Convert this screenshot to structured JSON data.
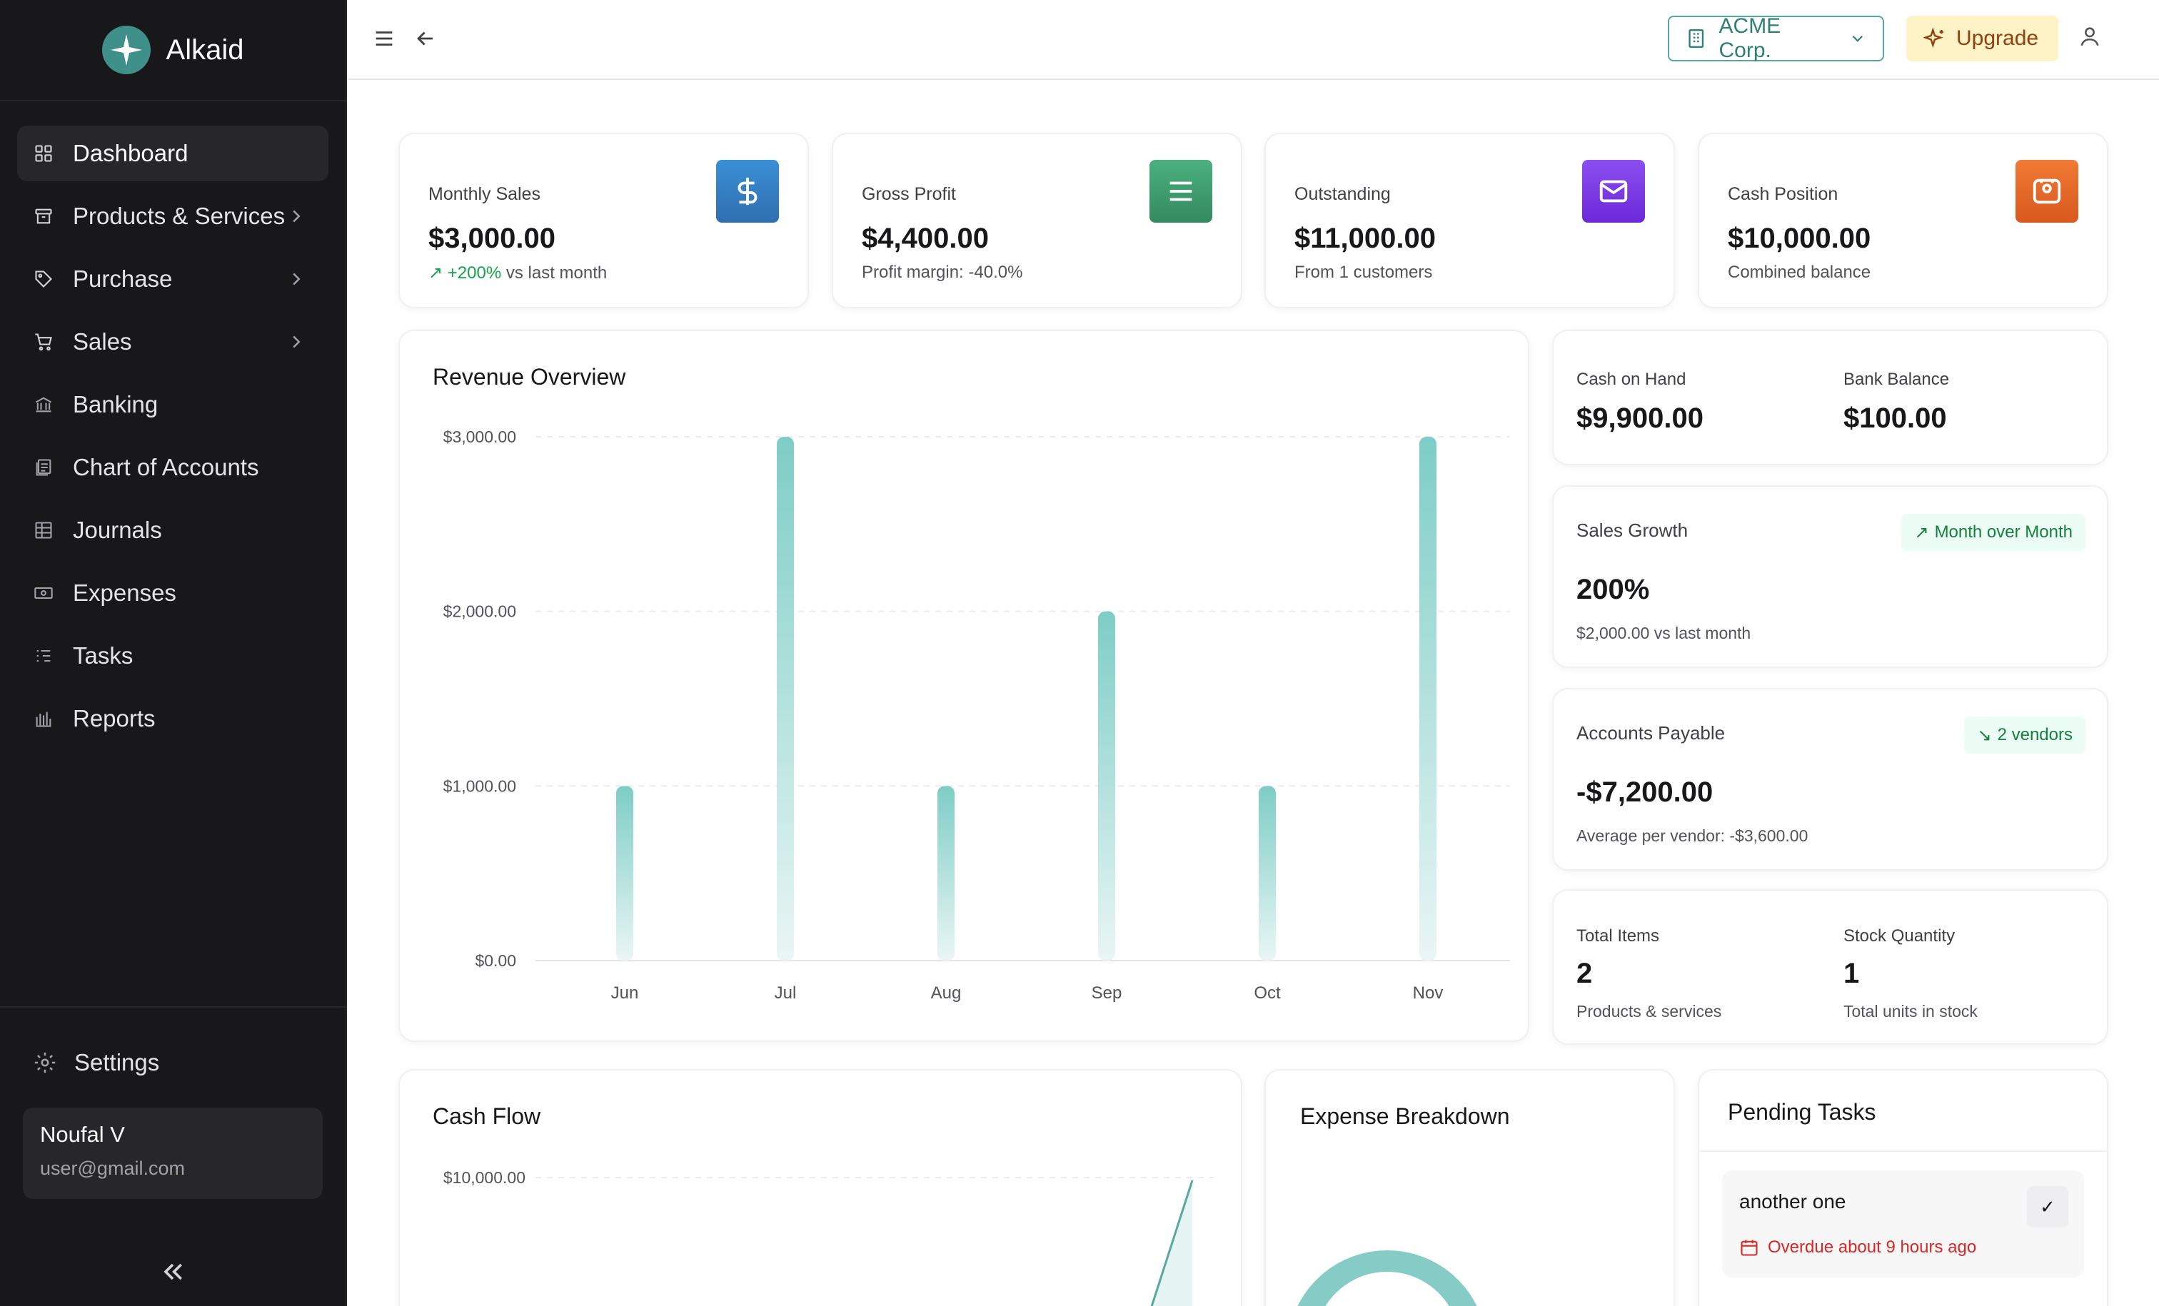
{
  "app": {
    "name": "Alkaid"
  },
  "sidebar": {
    "items": [
      {
        "label": "Dashboard",
        "icon": "dashboard-grid-icon"
      },
      {
        "label": "Products & Services",
        "icon": "box-icon"
      },
      {
        "label": "Purchase",
        "icon": "tag-icon"
      },
      {
        "label": "Sales",
        "icon": "cart-icon"
      },
      {
        "label": "Banking",
        "icon": "bank-icon"
      },
      {
        "label": "Chart of Accounts",
        "icon": "ledger-icon"
      },
      {
        "label": "Journals",
        "icon": "table-icon"
      },
      {
        "label": "Expenses",
        "icon": "cash-icon"
      },
      {
        "label": "Tasks",
        "icon": "list-icon"
      },
      {
        "label": "Reports",
        "icon": "bar-chart-icon"
      }
    ],
    "settings_label": "Settings",
    "user": {
      "name": "Noufal V",
      "email": "user@gmail.com"
    }
  },
  "header": {
    "company": "ACME Corp.",
    "upgrade_label": "Upgrade"
  },
  "stats": [
    {
      "title": "Monthly Sales",
      "value": "$3,000.00",
      "trend": "+200%",
      "sub": "vs last month",
      "color": "#3b82c4",
      "icon": "dollar-icon"
    },
    {
      "title": "Gross Profit",
      "value": "$4,400.00",
      "sub": "Profit margin: -40.0%",
      "color": "#3fa070",
      "icon": "menu-lines-icon"
    },
    {
      "title": "Outstanding",
      "value": "$11,000.00",
      "sub": "From 1 customers",
      "color": "#7c3aed",
      "icon": "mail-icon"
    },
    {
      "title": "Cash Position",
      "value": "$10,000.00",
      "sub": "Combined balance",
      "color": "#ea6a2a",
      "icon": "wallet-icon"
    }
  ],
  "revenue": {
    "title": "Revenue Overview"
  },
  "chart_data": [
    {
      "type": "bar",
      "title": "Revenue Overview",
      "categories": [
        "Jun",
        "Jul",
        "Aug",
        "Sep",
        "Oct",
        "Nov"
      ],
      "values": [
        1000,
        3000,
        1000,
        2000,
        1000,
        3000
      ],
      "ylim": [
        0,
        3000
      ],
      "yticks": [
        "$0.00",
        "$1,000.00",
        "$2,000.00",
        "$3,000.00"
      ],
      "grid": true
    },
    {
      "type": "area",
      "title": "Cash Flow",
      "yticks_visible": [
        "$10,000.00"
      ]
    }
  ],
  "cash": {
    "on_hand_label": "Cash on Hand",
    "on_hand": "$9,900.00",
    "bank_label": "Bank Balance",
    "bank": "$100.00"
  },
  "growth": {
    "title": "Sales Growth",
    "pill": "Month over Month",
    "value": "200%",
    "sub": "$2,000.00 vs last month"
  },
  "payable": {
    "title": "Accounts Payable",
    "pill": "2 vendors",
    "value": "-$7,200.00",
    "sub": "Average per vendor: -$3,600.00"
  },
  "inventory": {
    "items_label": "Total Items",
    "items": "2",
    "items_sub": "Products & services",
    "stock_label": "Stock Quantity",
    "stock": "1",
    "stock_sub": "Total units in stock"
  },
  "cashflow": {
    "title": "Cash Flow"
  },
  "expense": {
    "title": "Expense Breakdown"
  },
  "tasks": {
    "title": "Pending Tasks",
    "items": [
      {
        "name": "another one",
        "due": "Overdue about 9 hours ago"
      }
    ]
  },
  "colors": {
    "accent": "#5aa7a1",
    "bar": "#7ecdc6",
    "sidebar_bg": "#18181b"
  }
}
